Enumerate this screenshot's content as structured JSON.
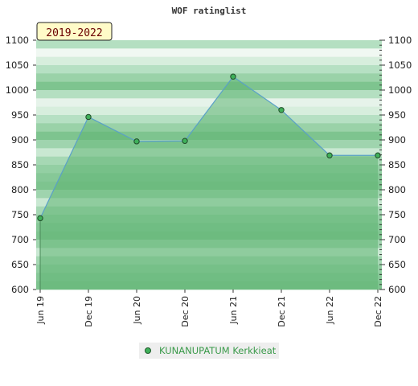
{
  "chart_data": {
    "type": "area",
    "title": "WOF ratinglist",
    "period_label": "2019-2022",
    "xlabel": "",
    "ylabel": "",
    "categories": [
      "Jun 19",
      "Dec 19",
      "Jun 20",
      "Dec 20",
      "Jun 21",
      "Dec 21",
      "Jun 22",
      "Dec 22"
    ],
    "x_ticks": [
      "Jun 19",
      "Dec 19",
      "Jun 20",
      "Dec 20",
      "Jun 21",
      "Dec 21",
      "Jun 22",
      "Dec 22"
    ],
    "y_ticks": [
      600,
      650,
      700,
      750,
      800,
      850,
      900,
      950,
      1000,
      1050,
      1100
    ],
    "ylim": [
      600,
      1100
    ],
    "grid": true,
    "legend_position": "bottom-center",
    "series": [
      {
        "name": "KUNANUPATUM Kerkkieat",
        "values": [
          743,
          946,
          897,
          898,
          1027,
          960,
          869,
          869
        ]
      }
    ]
  },
  "colors": {
    "line": "#5aa0c8",
    "marker_fill": "#3fb05a",
    "area_fill": "#5fb472",
    "legend_text": "#3a9a4a",
    "period_box": "#fffbc8"
  }
}
